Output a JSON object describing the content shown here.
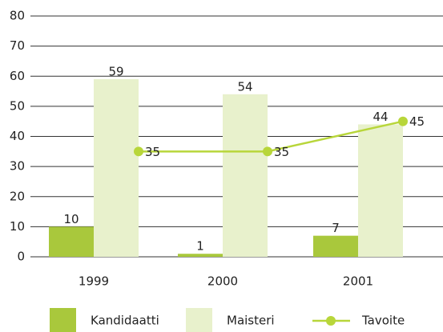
{
  "chart_data": {
    "type": "bar",
    "categories": [
      "1999",
      "2000",
      "2001"
    ],
    "series": [
      {
        "name": "Kandidaatti",
        "color": "#a9c83c",
        "values": [
          10,
          1,
          7
        ]
      },
      {
        "name": "Maisteri",
        "color": "#e8f1cc",
        "values": [
          59,
          54,
          44
        ]
      },
      {
        "name": "Tavoite",
        "type": "line",
        "color": "#b8d63a",
        "values": [
          35,
          35,
          45
        ]
      }
    ],
    "ylim": [
      0,
      80
    ],
    "yticks": [
      0,
      10,
      20,
      30,
      40,
      50,
      60,
      70,
      80
    ],
    "grid": true,
    "legend": "bottom"
  }
}
